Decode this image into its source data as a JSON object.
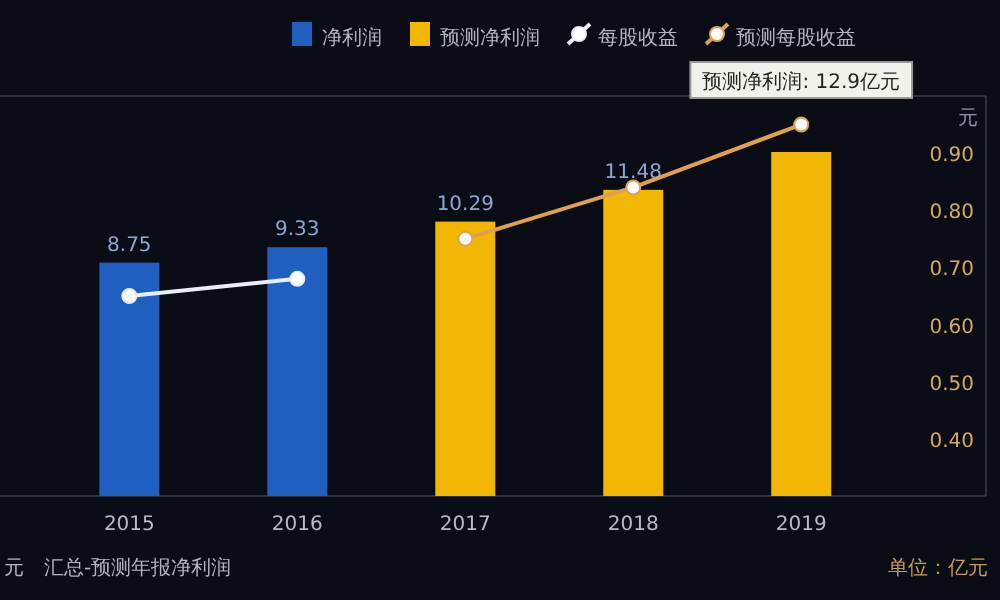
{
  "chart_data": {
    "type": "bar",
    "categories": [
      "2015",
      "2016",
      "2017",
      "2018",
      "2019"
    ],
    "series": [
      {
        "name": "净利润",
        "color": "#1f5fc0",
        "values": [
          8.75,
          9.33,
          null,
          null,
          null
        ],
        "value_labels": [
          "8.75",
          "9.33",
          null,
          null,
          null
        ]
      },
      {
        "name": "预测净利润",
        "color": "#f2b705",
        "values": [
          null,
          null,
          10.29,
          11.48,
          12.9
        ],
        "value_labels": [
          null,
          null,
          "10.29",
          "11.48",
          null
        ]
      },
      {
        "name": "每股收益",
        "type": "line",
        "axis": "y2",
        "color": "#e8eef8",
        "values": [
          0.65,
          0.68,
          null,
          null,
          null
        ]
      },
      {
        "name": "预测每股收益",
        "type": "line",
        "axis": "y2",
        "color": "#e0a050",
        "values": [
          null,
          null,
          0.75,
          0.84,
          0.95
        ]
      }
    ],
    "ylim": [
      0,
      15
    ],
    "y2lim": [
      0.3,
      1.0
    ],
    "y2ticks": [
      {
        "value": 0.4,
        "label": "0.40"
      },
      {
        "value": 0.5,
        "label": "0.50"
      },
      {
        "value": 0.6,
        "label": "0.60"
      },
      {
        "value": 0.7,
        "label": "0.70"
      },
      {
        "value": 0.8,
        "label": "0.80"
      },
      {
        "value": 0.9,
        "label": "0.90"
      }
    ],
    "y2label": "元",
    "legend": "top right",
    "marker": "circle",
    "annotations": [
      {
        "text": "预测净利润: 12.9亿元",
        "x": "2019",
        "y": 12.9
      },
      "元",
      "汇总-预测年报净利润",
      "单位：亿元"
    ]
  }
}
